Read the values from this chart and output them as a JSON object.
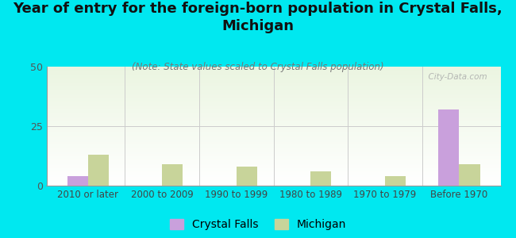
{
  "title": "Year of entry for the foreign-born population in Crystal Falls,\nMichigan",
  "subtitle": "(Note: State values scaled to Crystal Falls population)",
  "categories": [
    "2010 or later",
    "2000 to 2009",
    "1990 to 1999",
    "1980 to 1989",
    "1970 to 1979",
    "Before 1970"
  ],
  "crystal_falls_values": [
    4,
    0,
    0,
    0,
    0,
    32
  ],
  "michigan_values": [
    13,
    9,
    8,
    6,
    4,
    9
  ],
  "crystal_falls_color": "#c9a0dc",
  "michigan_color": "#c8d49a",
  "background_color": "#00e8f0",
  "ylim": [
    0,
    50
  ],
  "yticks": [
    0,
    25,
    50
  ],
  "bar_width": 0.28,
  "watermark": "  City-Data.com",
  "title_fontsize": 13,
  "subtitle_fontsize": 8.5,
  "legend_fontsize": 10,
  "tick_fontsize": 8.5
}
